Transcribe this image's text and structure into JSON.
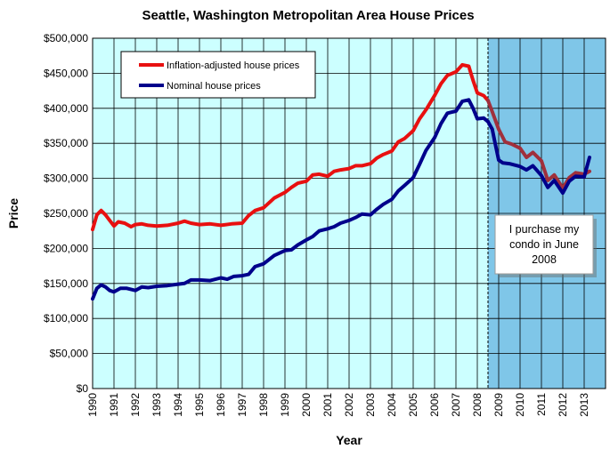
{
  "chart_data": {
    "type": "line",
    "title": "Seattle, Washington Metropolitan Area House Prices",
    "xlabel": "Year",
    "ylabel": "Price",
    "xlim": [
      1990,
      2014
    ],
    "ylim": [
      0,
      500000
    ],
    "grid": true,
    "legend_position": "top-left",
    "x_ticks": [
      "1990",
      "1991",
      "1992",
      "1993",
      "1994",
      "1995",
      "1996",
      "1997",
      "1998",
      "1999",
      "2000",
      "2001",
      "2002",
      "2003",
      "2004",
      "2005",
      "2006",
      "2007",
      "2008",
      "2009",
      "2010",
      "2011",
      "2012",
      "2013"
    ],
    "y_ticks": [
      "$0",
      "$50,000",
      "$100,000",
      "$150,000",
      "$200,000",
      "$250,000",
      "$300,000",
      "$350,000",
      "$400,000",
      "$450,000",
      "$500,000"
    ],
    "shaded_region": {
      "start": 2008.5,
      "end": 2014
    },
    "annotation": {
      "lines": [
        "I purchase my",
        "condo in June",
        "2008"
      ]
    },
    "series": [
      {
        "name": "Inflation-adjusted house prices",
        "color": "#e81010",
        "color_after_purchase": "#a0303c",
        "x": [
          1990.0,
          1990.2,
          1990.4,
          1990.6,
          1990.8,
          1991.0,
          1991.2,
          1991.5,
          1991.8,
          1992.0,
          1992.3,
          1992.6,
          1993.0,
          1993.5,
          1994.0,
          1994.3,
          1994.6,
          1995.0,
          1995.5,
          1996.0,
          1996.5,
          1997.0,
          1997.3,
          1997.6,
          1998.0,
          1998.5,
          1999.0,
          1999.3,
          1999.6,
          2000.0,
          2000.3,
          2000.6,
          2001.0,
          2001.3,
          2001.6,
          2002.0,
          2002.3,
          2002.6,
          2003.0,
          2003.3,
          2003.6,
          2004.0,
          2004.3,
          2004.6,
          2005.0,
          2005.3,
          2005.6,
          2006.0,
          2006.3,
          2006.6,
          2007.0,
          2007.3,
          2007.6,
          2007.8,
          2008.0,
          2008.3,
          2008.5,
          2008.7,
          2009.0,
          2009.3,
          2009.6,
          2010.0,
          2010.3,
          2010.6,
          2011.0,
          2011.3,
          2011.6,
          2012.0,
          2012.3,
          2012.6,
          2013.0,
          2013.25
        ],
        "y": [
          227000,
          248000,
          254000,
          248000,
          240000,
          232000,
          238000,
          236000,
          231000,
          234000,
          235000,
          233000,
          232000,
          233000,
          236000,
          239000,
          236000,
          234000,
          235000,
          233000,
          235000,
          236000,
          247000,
          254000,
          258000,
          272000,
          280000,
          287000,
          293000,
          296000,
          305000,
          306000,
          303000,
          310000,
          312000,
          314000,
          318000,
          318000,
          321000,
          329000,
          334000,
          339000,
          352000,
          357000,
          368000,
          385000,
          398000,
          418000,
          435000,
          447000,
          452000,
          462000,
          460000,
          440000,
          422000,
          418000,
          411000,
          395000,
          370000,
          352000,
          349000,
          343000,
          330000,
          337000,
          325000,
          297000,
          305000,
          286000,
          301000,
          308000,
          306000,
          310000
        ]
      },
      {
        "name": "Nominal house prices",
        "color": "#00008b",
        "color_after_purchase": "#00008b",
        "x": [
          1990.0,
          1990.2,
          1990.4,
          1990.6,
          1990.8,
          1991.0,
          1991.3,
          1991.6,
          1992.0,
          1992.3,
          1992.6,
          1993.0,
          1993.5,
          1994.0,
          1994.3,
          1994.6,
          1995.0,
          1995.5,
          1996.0,
          1996.3,
          1996.6,
          1997.0,
          1997.3,
          1997.6,
          1998.0,
          1998.5,
          1999.0,
          1999.3,
          1999.6,
          2000.0,
          2000.3,
          2000.6,
          2001.0,
          2001.3,
          2001.6,
          2002.0,
          2002.3,
          2002.6,
          2003.0,
          2003.3,
          2003.6,
          2004.0,
          2004.3,
          2004.6,
          2005.0,
          2005.3,
          2005.6,
          2006.0,
          2006.3,
          2006.6,
          2007.0,
          2007.3,
          2007.6,
          2007.8,
          2008.0,
          2008.3,
          2008.5,
          2008.7,
          2008.8,
          2009.0,
          2009.2,
          2009.5,
          2010.0,
          2010.3,
          2010.6,
          2011.0,
          2011.3,
          2011.6,
          2012.0,
          2012.3,
          2012.6,
          2013.0,
          2013.25
        ],
        "y": [
          128000,
          143000,
          148000,
          145000,
          140000,
          138000,
          143000,
          143000,
          140000,
          145000,
          144000,
          146000,
          147000,
          149000,
          150000,
          155000,
          155000,
          154000,
          158000,
          156000,
          160000,
          161000,
          163000,
          174000,
          178000,
          190000,
          197000,
          198000,
          205000,
          212000,
          217000,
          225000,
          228000,
          231000,
          236000,
          240000,
          244000,
          249000,
          248000,
          256000,
          263000,
          270000,
          282000,
          290000,
          301000,
          320000,
          340000,
          358000,
          378000,
          393000,
          396000,
          410000,
          412000,
          400000,
          385000,
          386000,
          381000,
          370000,
          355000,
          326000,
          322000,
          321000,
          317000,
          312000,
          318000,
          304000,
          287000,
          297000,
          279000,
          296000,
          303000,
          302000,
          330000
        ]
      }
    ]
  }
}
